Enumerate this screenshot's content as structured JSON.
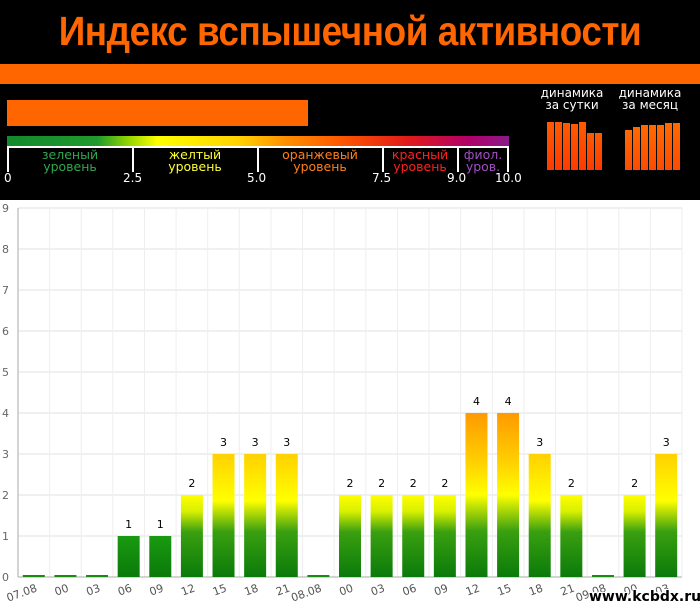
{
  "header": {
    "title": "Индекс вспышечной активности",
    "current_level_fraction": 0.6,
    "colors": {
      "orange": "#ff6600",
      "background": "#000000"
    }
  },
  "scale": {
    "ticks": [
      "0",
      "2.5",
      "5.0",
      "7.5",
      "9.0",
      "10.0"
    ],
    "levels": [
      {
        "line1": "зеленый",
        "line2": "уровень",
        "color": "#2fa84f"
      },
      {
        "line1": "желтый",
        "line2": "уровень",
        "color": "#ffff33"
      },
      {
        "line1": "оранжевый",
        "line2": "уровень",
        "color": "#ff7f1a"
      },
      {
        "line1": "красный",
        "line2": "уровень",
        "color": "#ff2020"
      },
      {
        "line1": "фиол.",
        "line2": "уров.",
        "color": "#a050c0"
      }
    ]
  },
  "dynamics": {
    "day": {
      "line1": "динамика",
      "line2": "за сутки",
      "bars": [
        0.77,
        0.77,
        0.75,
        0.74,
        0.77,
        0.6,
        0.6
      ]
    },
    "month": {
      "line1": "динамика",
      "line2": "за месяц",
      "bars": [
        0.65,
        0.7,
        0.72,
        0.72,
        0.73,
        0.75,
        0.75
      ]
    }
  },
  "watermark": "www.kcbdx.ru",
  "chart_data": {
    "type": "bar",
    "categories": [
      "07.08",
      "00",
      "03",
      "06",
      "09",
      "12",
      "15",
      "18",
      "21",
      "08.08",
      "00",
      "03",
      "06",
      "09",
      "12",
      "15",
      "18",
      "21",
      "09.08",
      "00",
      "03"
    ],
    "values": [
      0,
      0,
      0,
      1,
      1,
      2,
      3,
      3,
      3,
      0,
      2,
      2,
      2,
      2,
      4,
      4,
      3,
      2,
      0,
      2,
      3
    ],
    "ylim": [
      0,
      9
    ],
    "yticks": [
      "0",
      "1",
      "2",
      "3",
      "4",
      "5",
      "6",
      "7",
      "8",
      "9"
    ],
    "grid": true,
    "title": "",
    "xlabel": "",
    "ylabel": ""
  }
}
